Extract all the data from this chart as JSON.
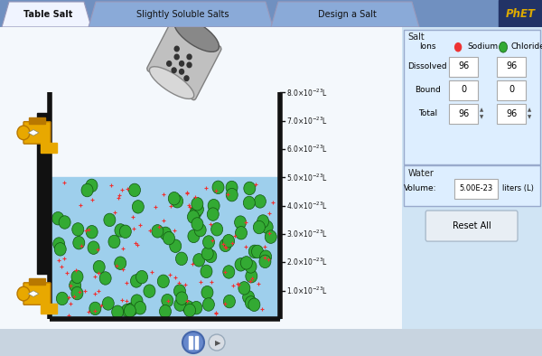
{
  "bg_color": "#e0e8f0",
  "tab_bg": "#7090c0",
  "main_bg": "#f4f8fc",
  "tabs": [
    "Table Salt",
    "Slightly Soluble Salts",
    "Design a Salt"
  ],
  "tab_active_color": "#f0f4ff",
  "tab_inactive_color": "#6080b8",
  "water_color": "#9ecfec",
  "tank_outline": "#111111",
  "tick_values": [
    1,
    2,
    3,
    4,
    5,
    6,
    7,
    8
  ],
  "tick_labels_base": [
    "1.0",
    "2.0",
    "3.0",
    "4.0",
    "5.0",
    "6.0",
    "7.0",
    "8.0"
  ],
  "water_level": 5.0,
  "panel_bg": "#d0e4f4",
  "sodium_color": "#ee3333",
  "chloride_color": "#33aa33",
  "dissolved_na": 96,
  "dissolved_cl": 96,
  "bound_na": 0,
  "bound_cl": 0,
  "total_na": 96,
  "total_cl": 96,
  "volume": "5.00E-23",
  "faucet_color": "#e8a800",
  "faucet_dark": "#b87800",
  "shaker_light": "#d8d8d8",
  "shaker_mid": "#a8a8a8",
  "shaker_dark": "#606060",
  "pipe_color": "#111111",
  "phet_bg": "#223366",
  "phet_text": "#ddaa00"
}
